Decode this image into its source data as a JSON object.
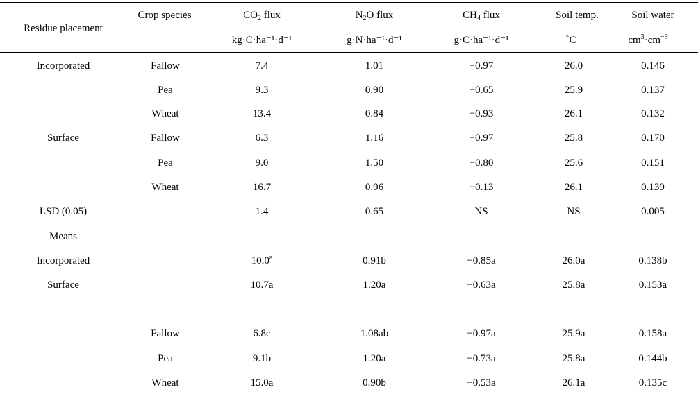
{
  "headers": {
    "residue_placement": "Residue placement",
    "crop_species": "Crop species",
    "co2": {
      "pre": "CO",
      "sub": "2",
      "post": " flux"
    },
    "n2o": {
      "pre": "N",
      "sub": "2",
      "post": "O flux"
    },
    "ch4": {
      "pre": "CH",
      "sub": "4",
      "post": " flux"
    },
    "soil_temp": "Soil temp.",
    "soil_water": "Soil water"
  },
  "units": {
    "co2": "kg·C·ha⁻¹·d⁻¹",
    "n2o": "g·N·ha⁻¹·d⁻¹",
    "ch4": "g·C·ha⁻¹·d⁻¹",
    "soil_temp": "˚C",
    "soil_water": {
      "a": "cm",
      "a_sup": "3",
      "b": "·cm",
      "b_sup": "−3"
    }
  },
  "rows": [
    {
      "placement": "Incorporated",
      "crop": "Fallow",
      "co2": "7.4",
      "n2o": "1.01",
      "ch4": "−0.97",
      "temp": "26.0",
      "water": "0.146"
    },
    {
      "placement": "",
      "crop": "Pea",
      "co2": "9.3",
      "n2o": "0.90",
      "ch4": "−0.65",
      "temp": "25.9",
      "water": "0.137"
    },
    {
      "placement": "",
      "crop": "Wheat",
      "co2": "13.4",
      "n2o": "0.84",
      "ch4": "−0.93",
      "temp": "26.1",
      "water": "0.132"
    },
    {
      "placement": "Surface",
      "crop": "Fallow",
      "co2": "6.3",
      "n2o": "1.16",
      "ch4": "−0.97",
      "temp": "25.8",
      "water": "0.170"
    },
    {
      "placement": "",
      "crop": "Pea",
      "co2": "9.0",
      "n2o": "1.50",
      "ch4": "−0.80",
      "temp": "25.6",
      "water": "0.151"
    },
    {
      "placement": "",
      "crop": "Wheat",
      "co2": "16.7",
      "n2o": "0.96",
      "ch4": "−0.13",
      "temp": "26.1",
      "water": "0.139"
    },
    {
      "placement": "LSD (0.05)",
      "crop": "",
      "co2": "1.4",
      "n2o": "0.65",
      "ch4": "NS",
      "temp": "NS",
      "water": "0.005"
    },
    {
      "placement": "Means",
      "crop": "",
      "co2": "",
      "n2o": "",
      "ch4": "",
      "temp": "",
      "water": ""
    },
    {
      "placement": "Incorporated",
      "crop": "",
      "co2": "10.0a",
      "co2_sup": "a",
      "n2o": "0.91b",
      "ch4": "−0.85a",
      "temp": "26.0a",
      "water": "0.138b"
    },
    {
      "placement": "Surface",
      "crop": "",
      "co2": "10.7a",
      "n2o": "1.20a",
      "ch4": "−0.63a",
      "temp": "25.8a",
      "water": "0.153a"
    },
    {
      "placement": "",
      "crop": "Fallow",
      "co2": "6.8c",
      "n2o": "1.08ab",
      "ch4": "−0.97a",
      "temp": "25.9a",
      "water": "0.158a"
    },
    {
      "placement": "",
      "crop": "Pea",
      "co2": "9.1b",
      "n2o": "1.20a",
      "ch4": "−0.73a",
      "temp": "25.8a",
      "water": "0.144b"
    },
    {
      "placement": "",
      "crop": "Wheat",
      "co2": "15.0a",
      "n2o": "0.90b",
      "ch4": "−0.53a",
      "temp": "26.1a",
      "water": "0.135c"
    }
  ]
}
